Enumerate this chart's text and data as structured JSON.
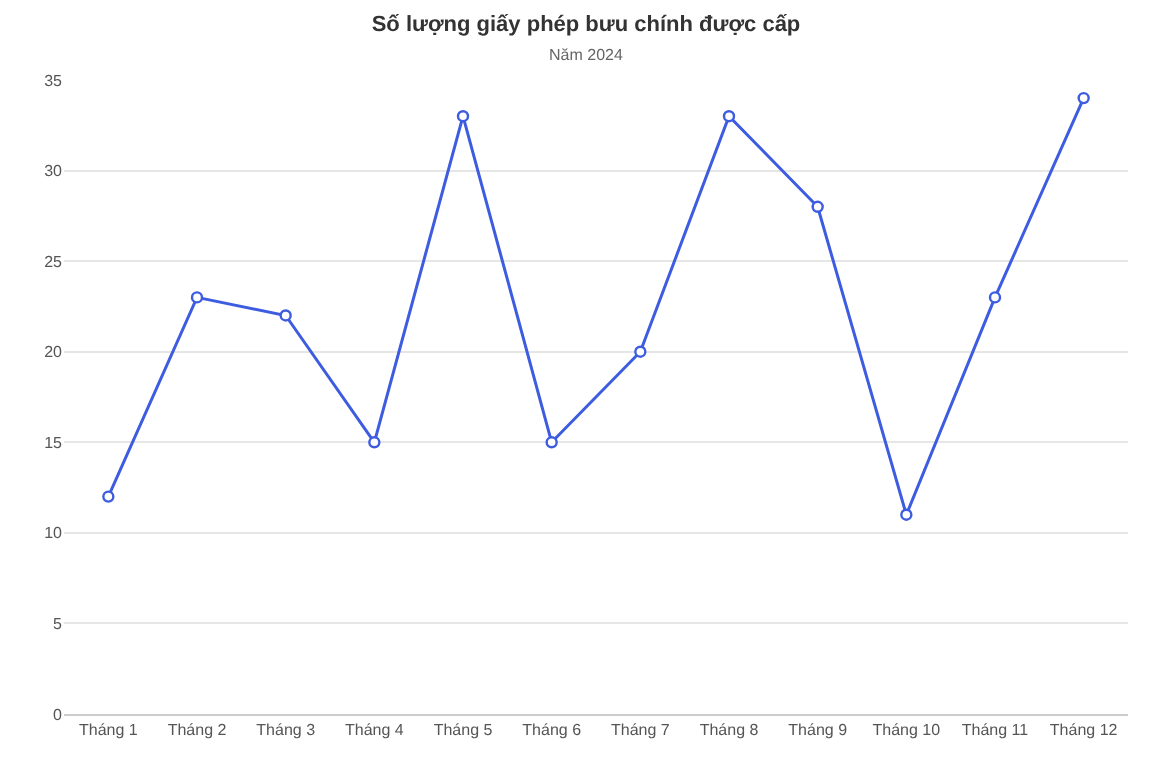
{
  "chart_data": {
    "type": "line",
    "title": "Số lượng giấy phép bưu chính được cấp",
    "subtitle": "Năm 2024",
    "categories": [
      "Tháng 1",
      "Tháng 2",
      "Tháng 3",
      "Tháng 4",
      "Tháng 5",
      "Tháng 6",
      "Tháng 7",
      "Tháng 8",
      "Tháng 9",
      "Tháng 10",
      "Tháng 11",
      "Tháng 12"
    ],
    "series": [
      {
        "color": "#3d5ce0",
        "values": [
          12,
          23,
          22,
          15,
          33,
          15,
          20,
          33,
          28,
          11,
          23,
          34
        ]
      }
    ],
    "ylim": [
      0,
      35
    ],
    "yticks": [
      0,
      5,
      10,
      15,
      20,
      25,
      30,
      35
    ],
    "grid": "y",
    "marker": "circle",
    "line_style": "solid",
    "legend": false
  }
}
